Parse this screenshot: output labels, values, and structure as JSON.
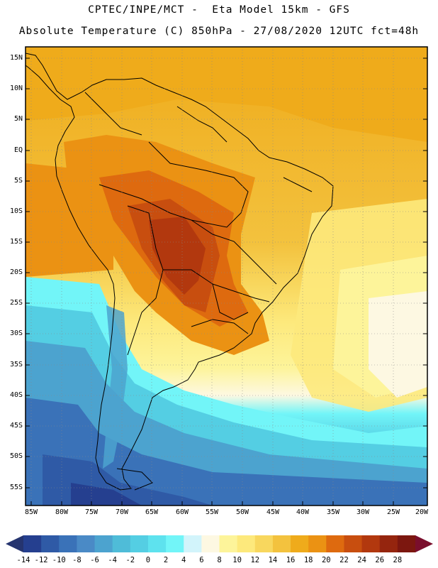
{
  "header": {
    "line1": "CPTEC/INPE/MCT -  Eta Model 15km - GFS",
    "line2": "Absolute Temperature (C) 850hPa - 27/08/2020 12UTC fct=48h"
  },
  "axes": {
    "lat_labels": [
      "15N",
      "10N",
      "5N",
      "EQ",
      "5S",
      "10S",
      "15S",
      "20S",
      "25S",
      "30S",
      "35S",
      "40S",
      "45S",
      "50S",
      "55S"
    ],
    "lon_labels": [
      "85W",
      "80W",
      "75W",
      "70W",
      "65W",
      "60W",
      "55W",
      "50W",
      "45W",
      "40W",
      "35W",
      "30W",
      "25W",
      "20W"
    ]
  },
  "colorbar": {
    "labels": [
      "-14",
      "-12",
      "-10",
      "-8",
      "-6",
      "-4",
      "-2",
      "0",
      "2",
      "4",
      "6",
      "8",
      "10",
      "12",
      "14",
      "16",
      "18",
      "20",
      "22",
      "24",
      "26",
      "28"
    ],
    "colors": [
      "#253f8f",
      "#2f5aa6",
      "#3a72b8",
      "#4a8ac6",
      "#4ca3cf",
      "#4fbcd8",
      "#54cee3",
      "#5ee2ee",
      "#72f5f8",
      "#d2f4fb",
      "#fdf8e2",
      "#fdf49a",
      "#fde97c",
      "#f8d75e",
      "#f3c23e",
      "#efab1b",
      "#eb9213",
      "#de6a0f",
      "#c84e0f",
      "#b2380e",
      "#95250e",
      "#7c170f"
    ],
    "left_arrow": "#25346f",
    "right_arrow": "#7a0e2c"
  }
}
